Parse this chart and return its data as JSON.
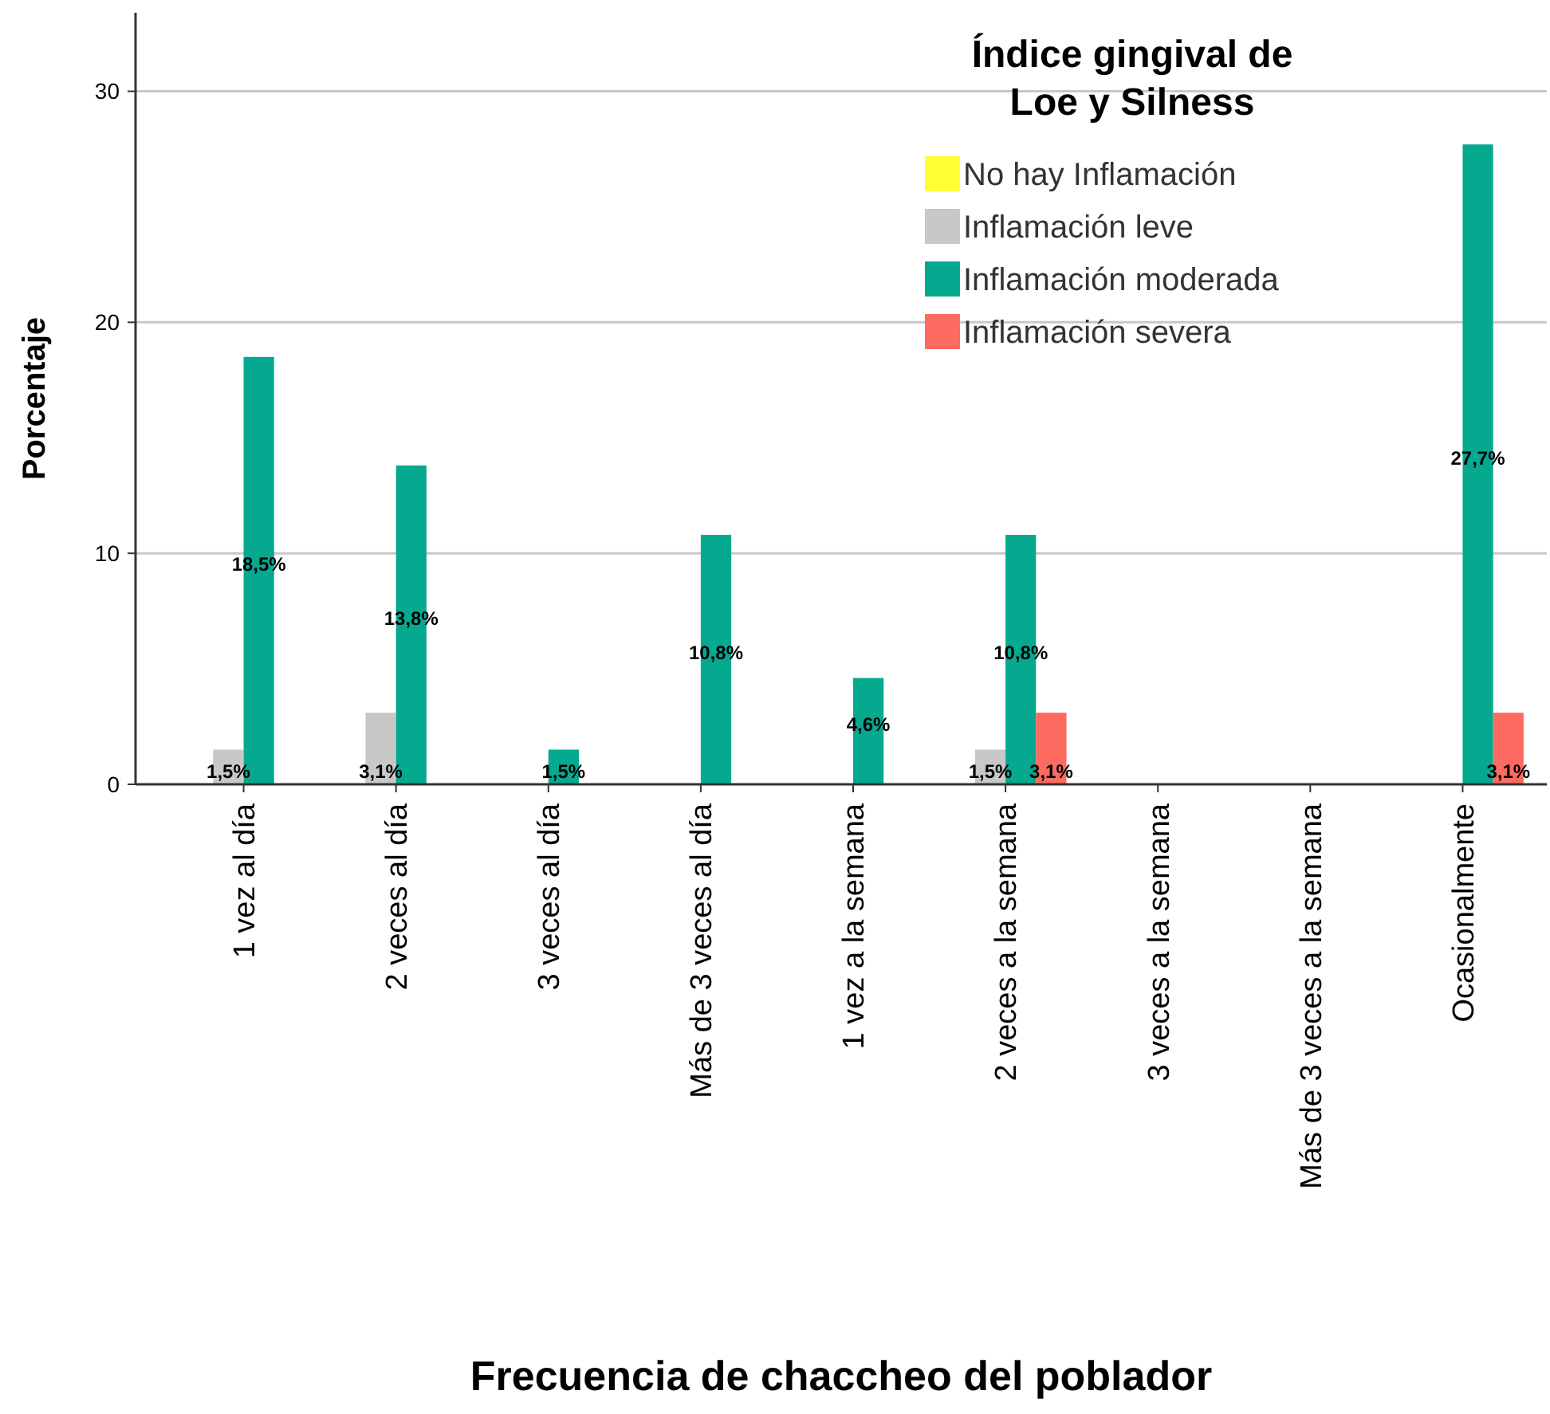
{
  "chart_data": {
    "type": "bar",
    "xlabel": "Frecuencia de chaccheo del poblador",
    "ylabel": "Porcentaje",
    "legend_title": "Índice gingival de Loe y Silness",
    "categories": [
      "1 vez al día",
      "2 veces al día",
      "3 veces al día",
      "Más de 3 veces al día",
      "1 vez a la semana",
      "2 veces a la semana",
      "3 veces a la semana",
      "Más de 3 veces a la semana",
      "Ocasionalmente"
    ],
    "series": [
      {
        "name": "No hay Inflamación",
        "color": "#ffff33",
        "values": [
          null,
          null,
          null,
          null,
          null,
          null,
          null,
          null,
          null
        ]
      },
      {
        "name": "Inflamación leve",
        "color": "#c8c8c8",
        "values": [
          1.5,
          3.1,
          null,
          null,
          null,
          1.5,
          null,
          null,
          null
        ],
        "value_labels": [
          "1,5%",
          "3,1%",
          null,
          null,
          null,
          "1,5%",
          null,
          null,
          null
        ]
      },
      {
        "name": "Inflamación moderada",
        "color": "#05a990",
        "values": [
          18.5,
          13.8,
          1.5,
          10.8,
          4.6,
          10.8,
          null,
          null,
          27.7
        ],
        "value_labels": [
          "18,5%",
          "13,8%",
          "1,5%",
          "10,8%",
          "4,6%",
          "10,8%",
          null,
          null,
          "27,7%"
        ]
      },
      {
        "name": "Inflamación severa",
        "color": "#fc6a60",
        "values": [
          null,
          null,
          null,
          null,
          null,
          3.1,
          null,
          null,
          3.1
        ],
        "value_labels": [
          null,
          null,
          null,
          null,
          null,
          "3,1%",
          null,
          null,
          "3,1%"
        ]
      }
    ],
    "ylim": [
      0,
      33.4
    ],
    "yticks": [
      0,
      10,
      20,
      30
    ],
    "grid": "y",
    "legend": "top right"
  }
}
